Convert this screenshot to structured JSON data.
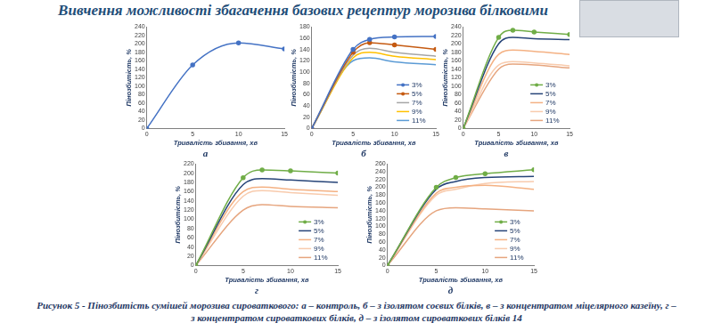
{
  "title": "Вивчення можливості збагачення базових рецептур морозива білковими",
  "caption": "Рисунок 5 - Пінозбитість сумішей морозива сироваткового: а – контроль, б – з ізолятом соєвих білків, в – з концентратом міцелярного казеїну, г – з концентратом сироваткових білків, д – з ізолятом сироваткових білків 14",
  "chart_data": [
    {
      "type": "line",
      "label": "а",
      "x_label": "Тривалість збивання, хв",
      "y_label": "Пінозбитість, %",
      "x": [
        0,
        5,
        10,
        15
      ],
      "xlim": [
        0,
        15
      ],
      "xticks": [
        0,
        5,
        10,
        15
      ],
      "ylim": [
        0,
        240
      ],
      "yticks": [
        0,
        20,
        40,
        60,
        80,
        100,
        120,
        140,
        160,
        180,
        200,
        220,
        240
      ],
      "grid": false,
      "series": [
        {
          "name": "а",
          "color": "#4472c4",
          "marker": "circle",
          "values": [
            0,
            150,
            202,
            188
          ]
        }
      ]
    },
    {
      "type": "line",
      "label": "б",
      "x_label": "Тривалість збивання, хв",
      "y_label": "Пінозбитість, %",
      "x": [
        0,
        5,
        7,
        10,
        15
      ],
      "xlim": [
        0,
        15
      ],
      "xticks": [
        0,
        5,
        10,
        15
      ],
      "ylim": [
        0,
        180
      ],
      "yticks": [
        0,
        20,
        40,
        60,
        80,
        100,
        120,
        140,
        160,
        180
      ],
      "grid": false,
      "legend": "lower right",
      "series": [
        {
          "name": "3%",
          "color": "#4472c4",
          "marker": "circle",
          "values": [
            0,
            140,
            158,
            162,
            163
          ]
        },
        {
          "name": "5%",
          "color": "#c55a11",
          "marker": "circle",
          "values": [
            0,
            135,
            152,
            148,
            140
          ]
        },
        {
          "name": "7%",
          "color": "#a5a5a5",
          "marker": "none",
          "values": [
            0,
            130,
            142,
            135,
            128
          ]
        },
        {
          "name": "9%",
          "color": "#ffc000",
          "marker": "none",
          "values": [
            0,
            125,
            135,
            128,
            122
          ]
        },
        {
          "name": "11%",
          "color": "#5b9bd5",
          "marker": "none",
          "values": [
            0,
            120,
            125,
            118,
            113
          ]
        }
      ]
    },
    {
      "type": "line",
      "label": "в",
      "x_label": "Тривалість збивання, хв",
      "y_label": "Пінозбитість, %",
      "x": [
        0,
        5,
        7,
        10,
        15
      ],
      "xlim": [
        0,
        15
      ],
      "xticks": [
        0,
        5,
        10,
        15
      ],
      "ylim": [
        0,
        240
      ],
      "yticks": [
        0,
        20,
        40,
        60,
        80,
        100,
        120,
        140,
        160,
        180,
        200,
        220,
        240
      ],
      "grid": false,
      "legend": "lower right",
      "series": [
        {
          "name": "3%",
          "color": "#70ad47",
          "marker": "circle",
          "values": [
            0,
            215,
            232,
            228,
            222
          ]
        },
        {
          "name": "5%",
          "color": "#264478",
          "marker": "none",
          "values": [
            0,
            200,
            215,
            212,
            210
          ]
        },
        {
          "name": "7%",
          "color": "#f4b183",
          "marker": "none",
          "values": [
            0,
            175,
            185,
            182,
            175
          ]
        },
        {
          "name": "9%",
          "color": "#f8cbad",
          "marker": "none",
          "values": [
            0,
            150,
            158,
            155,
            148
          ]
        },
        {
          "name": "11%",
          "color": "#e6a57e",
          "marker": "none",
          "values": [
            0,
            140,
            152,
            150,
            143
          ]
        }
      ]
    },
    {
      "type": "line",
      "label": "г",
      "x_label": "Тривалість збивання, хв",
      "y_label": "Пінозбитість, %",
      "x": [
        0,
        5,
        7,
        10,
        15
      ],
      "xlim": [
        0,
        15
      ],
      "xticks": [
        0,
        5,
        10,
        15
      ],
      "ylim": [
        0,
        220
      ],
      "yticks": [
        0,
        20,
        40,
        60,
        80,
        100,
        120,
        140,
        160,
        180,
        200,
        220
      ],
      "grid": false,
      "legend": "lower right",
      "series": [
        {
          "name": "3%",
          "color": "#70ad47",
          "marker": "circle",
          "values": [
            0,
            190,
            207,
            205,
            200
          ]
        },
        {
          "name": "5%",
          "color": "#264478",
          "marker": "none",
          "values": [
            0,
            175,
            188,
            185,
            180
          ]
        },
        {
          "name": "7%",
          "color": "#f4b183",
          "marker": "none",
          "values": [
            0,
            160,
            170,
            165,
            160
          ]
        },
        {
          "name": "9%",
          "color": "#f8cbad",
          "marker": "none",
          "values": [
            0,
            150,
            162,
            158,
            152
          ]
        },
        {
          "name": "11%",
          "color": "#e6a57e",
          "marker": "none",
          "values": [
            0,
            120,
            132,
            128,
            125
          ]
        }
      ]
    },
    {
      "type": "line",
      "label": "д",
      "x_label": "Тривалість збивання, хв",
      "y_label": "Пінозбитість, %",
      "x": [
        0,
        5,
        7,
        10,
        15
      ],
      "xlim": [
        0,
        15
      ],
      "xticks": [
        0,
        5,
        10,
        15
      ],
      "ylim": [
        0,
        260
      ],
      "yticks": [
        0,
        20,
        40,
        60,
        80,
        100,
        120,
        140,
        160,
        180,
        200,
        220,
        240,
        260
      ],
      "grid": false,
      "legend": "lower right",
      "series": [
        {
          "name": "3%",
          "color": "#70ad47",
          "marker": "circle",
          "values": [
            0,
            200,
            225,
            235,
            245
          ]
        },
        {
          "name": "5%",
          "color": "#264478",
          "marker": "none",
          "values": [
            0,
            195,
            215,
            225,
            228
          ]
        },
        {
          "name": "7%",
          "color": "#f4b183",
          "marker": "none",
          "values": [
            0,
            185,
            200,
            205,
            195
          ]
        },
        {
          "name": "9%",
          "color": "#f8cbad",
          "marker": "none",
          "values": [
            0,
            180,
            195,
            210,
            215
          ]
        },
        {
          "name": "11%",
          "color": "#e6a57e",
          "marker": "none",
          "values": [
            0,
            140,
            148,
            145,
            140
          ]
        }
      ]
    }
  ]
}
